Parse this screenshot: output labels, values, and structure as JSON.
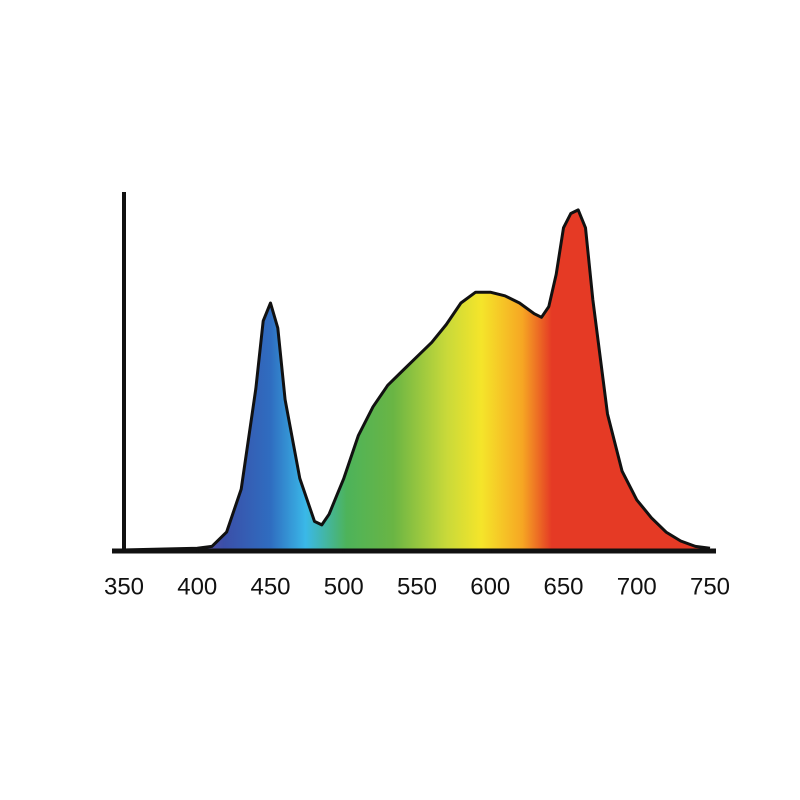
{
  "chart_data": {
    "type": "area",
    "x": [
      350,
      400,
      410,
      420,
      430,
      440,
      445,
      450,
      455,
      460,
      470,
      480,
      485,
      490,
      495,
      500,
      510,
      520,
      530,
      540,
      550,
      560,
      570,
      580,
      590,
      600,
      610,
      620,
      630,
      635,
      640,
      645,
      650,
      655,
      660,
      665,
      670,
      680,
      690,
      700,
      710,
      720,
      730,
      740,
      750
    ],
    "values": [
      0,
      0.005,
      0.01,
      0.05,
      0.17,
      0.45,
      0.64,
      0.69,
      0.62,
      0.42,
      0.2,
      0.08,
      0.07,
      0.1,
      0.15,
      0.2,
      0.32,
      0.4,
      0.46,
      0.5,
      0.54,
      0.58,
      0.63,
      0.69,
      0.72,
      0.72,
      0.71,
      0.69,
      0.66,
      0.65,
      0.68,
      0.77,
      0.9,
      0.94,
      0.95,
      0.9,
      0.7,
      0.38,
      0.22,
      0.14,
      0.09,
      0.05,
      0.025,
      0.01,
      0.005
    ],
    "xlim": [
      350,
      750
    ],
    "xticks": [
      350,
      400,
      450,
      500,
      550,
      600,
      650,
      700,
      750
    ],
    "ylim": [
      0,
      1
    ],
    "outline_color": "#111111"
  }
}
